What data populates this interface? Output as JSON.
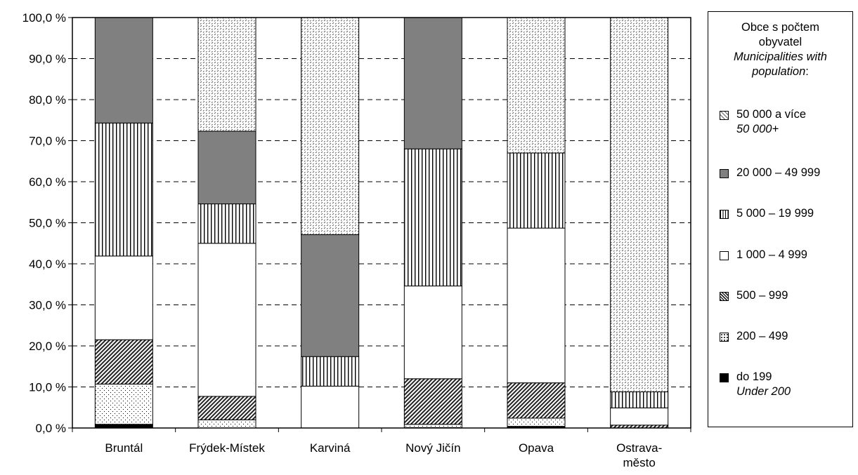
{
  "chart_data": {
    "type": "bar",
    "stacked": true,
    "categories": [
      "Bruntál",
      "Frýdek-Místek",
      "Karviná",
      "Nový Jičín",
      "Opava",
      "Ostrava-město"
    ],
    "category_lines": [
      [
        "Bruntál"
      ],
      [
        "Frýdek-Místek"
      ],
      [
        "Karviná"
      ],
      [
        "Nový Jičín"
      ],
      [
        "Opava"
      ],
      [
        "Ostrava-",
        "město"
      ]
    ],
    "y_ticks": [
      "0,0 %",
      "10,0 %",
      "20,0 %",
      "30,0 %",
      "40,0 %",
      "50,0 %",
      "60,0 %",
      "70,0 %",
      "80,0 %",
      "90,0 %",
      "100,0 %"
    ],
    "ylim": [
      0,
      100
    ],
    "grid": "horizontal-dashed",
    "legend_position": "right",
    "legend_title": [
      "Obce s počtem",
      "obyvatel"
    ],
    "legend_title_en": [
      "Municipalities with",
      "population"
    ],
    "legend_title_suffix": ":",
    "series": [
      {
        "name": "do 199",
        "name_en": "Under 200",
        "pattern": "solid-black",
        "values": [
          0.9,
          0.0,
          0.0,
          0.1,
          0.4,
          0.0
        ]
      },
      {
        "name": "200 – 499",
        "pattern": "dots",
        "values": [
          9.8,
          2.0,
          0.0,
          0.8,
          2.0,
          0.0
        ]
      },
      {
        "name": "500 – 999",
        "pattern": "diagonal-dense",
        "values": [
          10.8,
          5.7,
          0.0,
          11.1,
          8.6,
          0.7
        ]
      },
      {
        "name": "1 000 – 4 999",
        "pattern": "white",
        "values": [
          20.4,
          37.3,
          10.2,
          22.6,
          37.7,
          4.2
        ]
      },
      {
        "name": "5 000 – 19 999",
        "pattern": "vertical-lines",
        "values": [
          32.4,
          9.6,
          7.2,
          33.4,
          18.3,
          3.9
        ]
      },
      {
        "name": "20 000 – 49 999",
        "pattern": "solid-gray",
        "values": [
          25.7,
          17.7,
          29.7,
          32.0,
          0.0,
          0.0
        ]
      },
      {
        "name": "50 000 a více",
        "name_en": "50 000+",
        "pattern": "dashes",
        "values": [
          0.0,
          27.7,
          52.9,
          0.0,
          33.0,
          91.2
        ]
      }
    ],
    "colors": {
      "solid_gray": "#808080",
      "solid_black": "#000000",
      "border": "#000000"
    }
  }
}
